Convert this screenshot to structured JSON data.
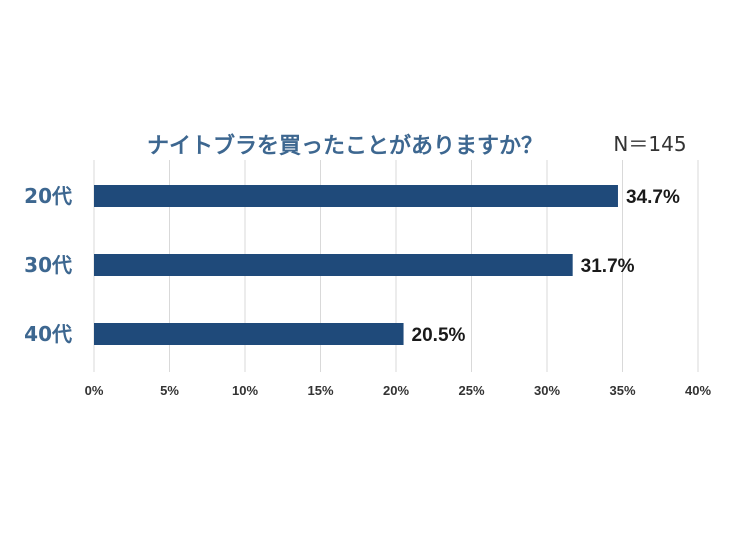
{
  "chart_data": {
    "type": "bar",
    "orientation": "horizontal",
    "title": "ナイトブラを買ったことがありますか？",
    "note": "N＝145",
    "categories": [
      "20代",
      "30代",
      "40代"
    ],
    "values": [
      34.7,
      31.7,
      20.5
    ],
    "value_labels": [
      "34.7%",
      "31.7%",
      "20.5%"
    ],
    "xlim": [
      0,
      40
    ],
    "ticks": [
      0,
      5,
      10,
      15,
      20,
      25,
      30,
      35,
      40
    ],
    "tick_labels": [
      "0%",
      "5%",
      "10%",
      "15%",
      "20%",
      "25%",
      "30%",
      "35%",
      "40%"
    ],
    "grid": true,
    "bar_color": "#1f4a7a"
  }
}
